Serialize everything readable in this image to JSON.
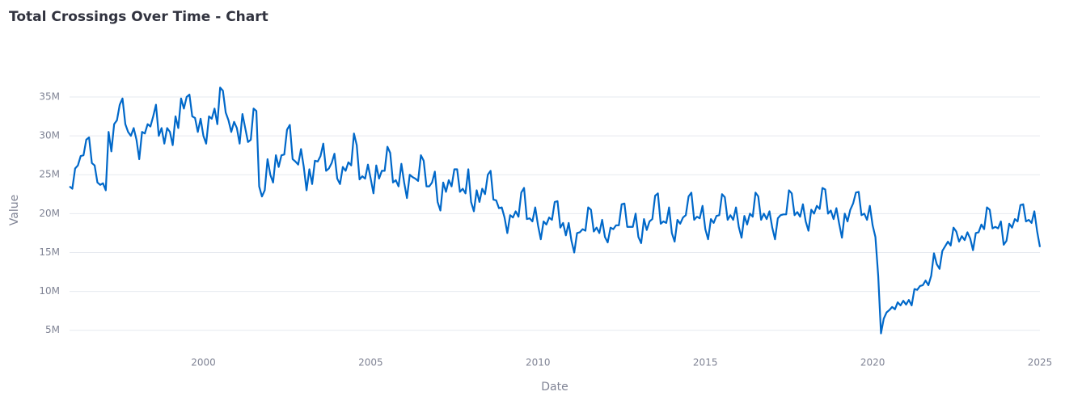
{
  "chart_data": {
    "type": "line",
    "title": "Total Crossings Over Time - Chart",
    "xlabel": "Date",
    "ylabel": "Value",
    "color": "#0068c9",
    "grid": true,
    "xlim": [
      1996,
      2025
    ],
    "xticks": [
      2000,
      2005,
      2010,
      2015,
      2020,
      2025
    ],
    "ylim": [
      3000000,
      37800000
    ],
    "yticks": [
      {
        "value": 5000000,
        "label": "5M"
      },
      {
        "value": 10000000,
        "label": "10M"
      },
      {
        "value": 15000000,
        "label": "15M"
      },
      {
        "value": 20000000,
        "label": "20M"
      },
      {
        "value": 25000000,
        "label": "25M"
      },
      {
        "value": 30000000,
        "label": "30M"
      },
      {
        "value": 35000000,
        "label": "35M"
      }
    ],
    "x": [
      1996,
      1996.083,
      1996.167,
      1996.25,
      1996.333,
      1996.417,
      1996.5,
      1996.583,
      1996.667,
      1996.75,
      1996.833,
      1996.917,
      1997,
      1997.083,
      1997.167,
      1997.25,
      1997.333,
      1997.417,
      1997.5,
      1997.583,
      1997.667,
      1997.75,
      1997.833,
      1997.917,
      1998,
      1998.083,
      1998.167,
      1998.25,
      1998.333,
      1998.417,
      1998.5,
      1998.583,
      1998.667,
      1998.75,
      1998.833,
      1998.917,
      1999,
      1999.083,
      1999.167,
      1999.25,
      1999.333,
      1999.417,
      1999.5,
      1999.583,
      1999.667,
      1999.75,
      1999.833,
      1999.917,
      2000,
      2000.083,
      2000.167,
      2000.25,
      2000.333,
      2000.417,
      2000.5,
      2000.583,
      2000.667,
      2000.75,
      2000.833,
      2000.917,
      2001,
      2001.083,
      2001.167,
      2001.25,
      2001.333,
      2001.417,
      2001.5,
      2001.583,
      2001.667,
      2001.75,
      2001.833,
      2001.917,
      2002,
      2002.083,
      2002.167,
      2002.25,
      2002.333,
      2002.417,
      2002.5,
      2002.583,
      2002.667,
      2002.75,
      2002.833,
      2002.917,
      2003,
      2003.083,
      2003.167,
      2003.25,
      2003.333,
      2003.417,
      2003.5,
      2003.583,
      2003.667,
      2003.75,
      2003.833,
      2003.917,
      2004,
      2004.083,
      2004.167,
      2004.25,
      2004.333,
      2004.417,
      2004.5,
      2004.583,
      2004.667,
      2004.75,
      2004.833,
      2004.917,
      2005,
      2005.083,
      2005.167,
      2005.25,
      2005.333,
      2005.417,
      2005.5,
      2005.583,
      2005.667,
      2005.75,
      2005.833,
      2005.917,
      2006,
      2006.083,
      2006.167,
      2006.25,
      2006.333,
      2006.417,
      2006.5,
      2006.583,
      2006.667,
      2006.75,
      2006.833,
      2006.917,
      2007,
      2007.083,
      2007.167,
      2007.25,
      2007.333,
      2007.417,
      2007.5,
      2007.583,
      2007.667,
      2007.75,
      2007.833,
      2007.917,
      2008,
      2008.083,
      2008.167,
      2008.25,
      2008.333,
      2008.417,
      2008.5,
      2008.583,
      2008.667,
      2008.75,
      2008.833,
      2008.917,
      2009,
      2009.083,
      2009.167,
      2009.25,
      2009.333,
      2009.417,
      2009.5,
      2009.583,
      2009.667,
      2009.75,
      2009.833,
      2009.917,
      2010,
      2010.083,
      2010.167,
      2010.25,
      2010.333,
      2010.417,
      2010.5,
      2010.583,
      2010.667,
      2010.75,
      2010.833,
      2010.917,
      2011,
      2011.083,
      2011.167,
      2011.25,
      2011.333,
      2011.417,
      2011.5,
      2011.583,
      2011.667,
      2011.75,
      2011.833,
      2011.917,
      2012,
      2012.083,
      2012.167,
      2012.25,
      2012.333,
      2012.417,
      2012.5,
      2012.583,
      2012.667,
      2012.75,
      2012.833,
      2012.917,
      2013,
      2013.083,
      2013.167,
      2013.25,
      2013.333,
      2013.417,
      2013.5,
      2013.583,
      2013.667,
      2013.75,
      2013.833,
      2013.917,
      2014,
      2014.083,
      2014.167,
      2014.25,
      2014.333,
      2014.417,
      2014.5,
      2014.583,
      2014.667,
      2014.75,
      2014.833,
      2014.917,
      2015,
      2015.083,
      2015.167,
      2015.25,
      2015.333,
      2015.417,
      2015.5,
      2015.583,
      2015.667,
      2015.75,
      2015.833,
      2015.917,
      2016,
      2016.083,
      2016.167,
      2016.25,
      2016.333,
      2016.417,
      2016.5,
      2016.583,
      2016.667,
      2016.75,
      2016.833,
      2016.917,
      2017,
      2017.083,
      2017.167,
      2017.25,
      2017.333,
      2017.417,
      2017.5,
      2017.583,
      2017.667,
      2017.75,
      2017.833,
      2017.917,
      2018,
      2018.083,
      2018.167,
      2018.25,
      2018.333,
      2018.417,
      2018.5,
      2018.583,
      2018.667,
      2018.75,
      2018.833,
      2018.917,
      2019,
      2019.083,
      2019.167,
      2019.25,
      2019.333,
      2019.417,
      2019.5,
      2019.583,
      2019.667,
      2019.75,
      2019.833,
      2019.917,
      2020,
      2020.083,
      2020.167,
      2020.25,
      2020.333,
      2020.417,
      2020.5,
      2020.583,
      2020.667,
      2020.75,
      2020.833,
      2020.917,
      2021,
      2021.083,
      2021.167,
      2021.25,
      2021.333,
      2021.417,
      2021.5,
      2021.583,
      2021.667,
      2021.75,
      2021.833,
      2021.917,
      2022,
      2022.083,
      2022.167,
      2022.25,
      2022.333,
      2022.417,
      2022.5,
      2022.583,
      2022.667,
      2022.75,
      2022.833,
      2022.917,
      2023,
      2023.083,
      2023.167,
      2023.25,
      2023.333,
      2023.417,
      2023.5,
      2023.583,
      2023.667,
      2023.75,
      2023.833,
      2023.917,
      2024,
      2024.083,
      2024.167,
      2024.25,
      2024.333,
      2024.417,
      2024.5,
      2024.583,
      2024.667,
      2024.75,
      2024.833,
      2024.917,
      2025
    ],
    "values": [
      23500000,
      23200000,
      25800000,
      26200000,
      27400000,
      27500000,
      29500000,
      29800000,
      26500000,
      26200000,
      24000000,
      23700000,
      23900000,
      23000000,
      30500000,
      28000000,
      31500000,
      32000000,
      34000000,
      34800000,
      31500000,
      30500000,
      30000000,
      31000000,
      29500000,
      27000000,
      30500000,
      30300000,
      31500000,
      31200000,
      32500000,
      34000000,
      30000000,
      31000000,
      29000000,
      31000000,
      30500000,
      28800000,
      32500000,
      31000000,
      34800000,
      33500000,
      35000000,
      35300000,
      32500000,
      32300000,
      30500000,
      32200000,
      30000000,
      29000000,
      32500000,
      32200000,
      33500000,
      31500000,
      36200000,
      35800000,
      33000000,
      32000000,
      30500000,
      31800000,
      31000000,
      29000000,
      32800000,
      31000000,
      29200000,
      29500000,
      33500000,
      33200000,
      23500000,
      22200000,
      23000000,
      27000000,
      25000000,
      24000000,
      27500000,
      26000000,
      27500000,
      27600000,
      30800000,
      31400000,
      27000000,
      26700000,
      26300000,
      28300000,
      26000000,
      23000000,
      25700000,
      23800000,
      26800000,
      26700000,
      27400000,
      29000000,
      25500000,
      25800000,
      26500000,
      27700000,
      24500000,
      23800000,
      26000000,
      25500000,
      26600000,
      26200000,
      30300000,
      28800000,
      24400000,
      24800000,
      24500000,
      26300000,
      24500000,
      22600000,
      26200000,
      24500000,
      25500000,
      25500000,
      28600000,
      27800000,
      24000000,
      24300000,
      23500000,
      26400000,
      24000000,
      22000000,
      25000000,
      24700000,
      24500000,
      24200000,
      27500000,
      26800000,
      23500000,
      23500000,
      24000000,
      25400000,
      21500000,
      20400000,
      24000000,
      22800000,
      24300000,
      23500000,
      25700000,
      25700000,
      22800000,
      23200000,
      22600000,
      25700000,
      21500000,
      20300000,
      23000000,
      21500000,
      23200000,
      22500000,
      25000000,
      25500000,
      21800000,
      21700000,
      20700000,
      20800000,
      19500000,
      17500000,
      19800000,
      19500000,
      20300000,
      19600000,
      22700000,
      23300000,
      19300000,
      19400000,
      19000000,
      20800000,
      18500000,
      16700000,
      19000000,
      18600000,
      19500000,
      19200000,
      21500000,
      21600000,
      18200000,
      18800000,
      17200000,
      18800000,
      16500000,
      15000000,
      17500000,
      17600000,
      18000000,
      17800000,
      20800000,
      20500000,
      17700000,
      18200000,
      17500000,
      19200000,
      17000000,
      16300000,
      18200000,
      18000000,
      18500000,
      18500000,
      21200000,
      21300000,
      18300000,
      18300000,
      18300000,
      20000000,
      17000000,
      16200000,
      19300000,
      17900000,
      19000000,
      19300000,
      22300000,
      22600000,
      18700000,
      19000000,
      18800000,
      20800000,
      17500000,
      16400000,
      19200000,
      18700000,
      19500000,
      19800000,
      22200000,
      22700000,
      19200000,
      19600000,
      19400000,
      21000000,
      18000000,
      16700000,
      19300000,
      18800000,
      19700000,
      19800000,
      22500000,
      22100000,
      19200000,
      19800000,
      19200000,
      20800000,
      18300000,
      16900000,
      19700000,
      18600000,
      20000000,
      19600000,
      22700000,
      22200000,
      19200000,
      20000000,
      19300000,
      20300000,
      18200000,
      16700000,
      19400000,
      19800000,
      19900000,
      19900000,
      23000000,
      22600000,
      19800000,
      20200000,
      19600000,
      21200000,
      19000000,
      17800000,
      20500000,
      20000000,
      21000000,
      20600000,
      23300000,
      23100000,
      20000000,
      20400000,
      19300000,
      20700000,
      18700000,
      16900000,
      20000000,
      19000000,
      20500000,
      21300000,
      22700000,
      22800000,
      19800000,
      20000000,
      19200000,
      21000000,
      18500000,
      17000000,
      12000000,
      4600000,
      6500000,
      7300000,
      7600000,
      8000000,
      7700000,
      8600000,
      8200000,
      8800000,
      8300000,
      8900000,
      8200000,
      10300000,
      10200000,
      10700000,
      10800000,
      11400000,
      10800000,
      12000000,
      14900000,
      13500000,
      12900000,
      15200000,
      15800000,
      16400000,
      15900000,
      18200000,
      17700000,
      16400000,
      17100000,
      16600000,
      17600000,
      16800000,
      15300000,
      17500000,
      17600000,
      18600000,
      18000000,
      20800000,
      20500000,
      18100000,
      18300000,
      18100000,
      19000000,
      16000000,
      16500000,
      18700000,
      18200000,
      19300000,
      19000000,
      21100000,
      21200000,
      19000000,
      19200000,
      18800000,
      20300000,
      17700000,
      15700000
    ]
  }
}
